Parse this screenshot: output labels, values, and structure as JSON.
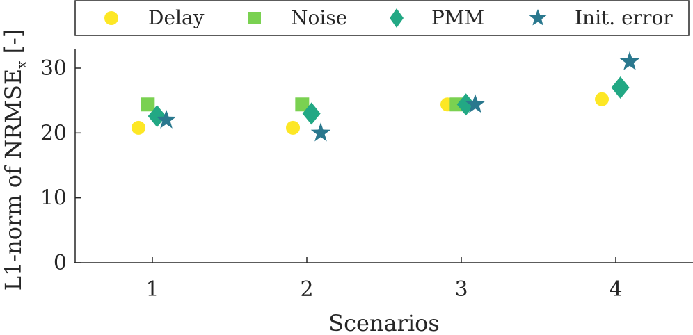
{
  "chart_data": {
    "type": "scatter",
    "xlabel": "Scenarios",
    "ylabel": "L1-norm of NRMSE",
    "ylabel_subscript": "x",
    "ylabel_suffix": "[-]",
    "categories": [
      "1",
      "2",
      "3",
      "4"
    ],
    "x_ticks": [
      1,
      2,
      3,
      4
    ],
    "y_ticks": [
      0,
      10,
      20,
      30
    ],
    "xlim": [
      0.5,
      4.5
    ],
    "ylim": [
      0,
      33
    ],
    "grid": false,
    "legend_position": "top, horizontal, outside plot",
    "series": [
      {
        "name": "Delay",
        "marker": "circle",
        "color": "#fde725",
        "x": [
          1,
          2,
          3,
          4
        ],
        "values": [
          20.8,
          20.8,
          24.4,
          25.2
        ]
      },
      {
        "name": "Noise",
        "marker": "square",
        "color": "#7ad151",
        "x": [
          1,
          2,
          3,
          4
        ],
        "values": [
          24.4,
          24.4,
          24.4,
          null
        ]
      },
      {
        "name": "PMM",
        "marker": "diamond",
        "color": "#22a884",
        "x": [
          1,
          2,
          3,
          4
        ],
        "values": [
          22.6,
          23.0,
          24.4,
          27.0
        ]
      },
      {
        "name": "Init. error",
        "marker": "star",
        "color": "#2a788e",
        "x": [
          1,
          2,
          3,
          4
        ],
        "values": [
          22.0,
          20.0,
          24.4,
          31.0
        ]
      }
    ]
  }
}
